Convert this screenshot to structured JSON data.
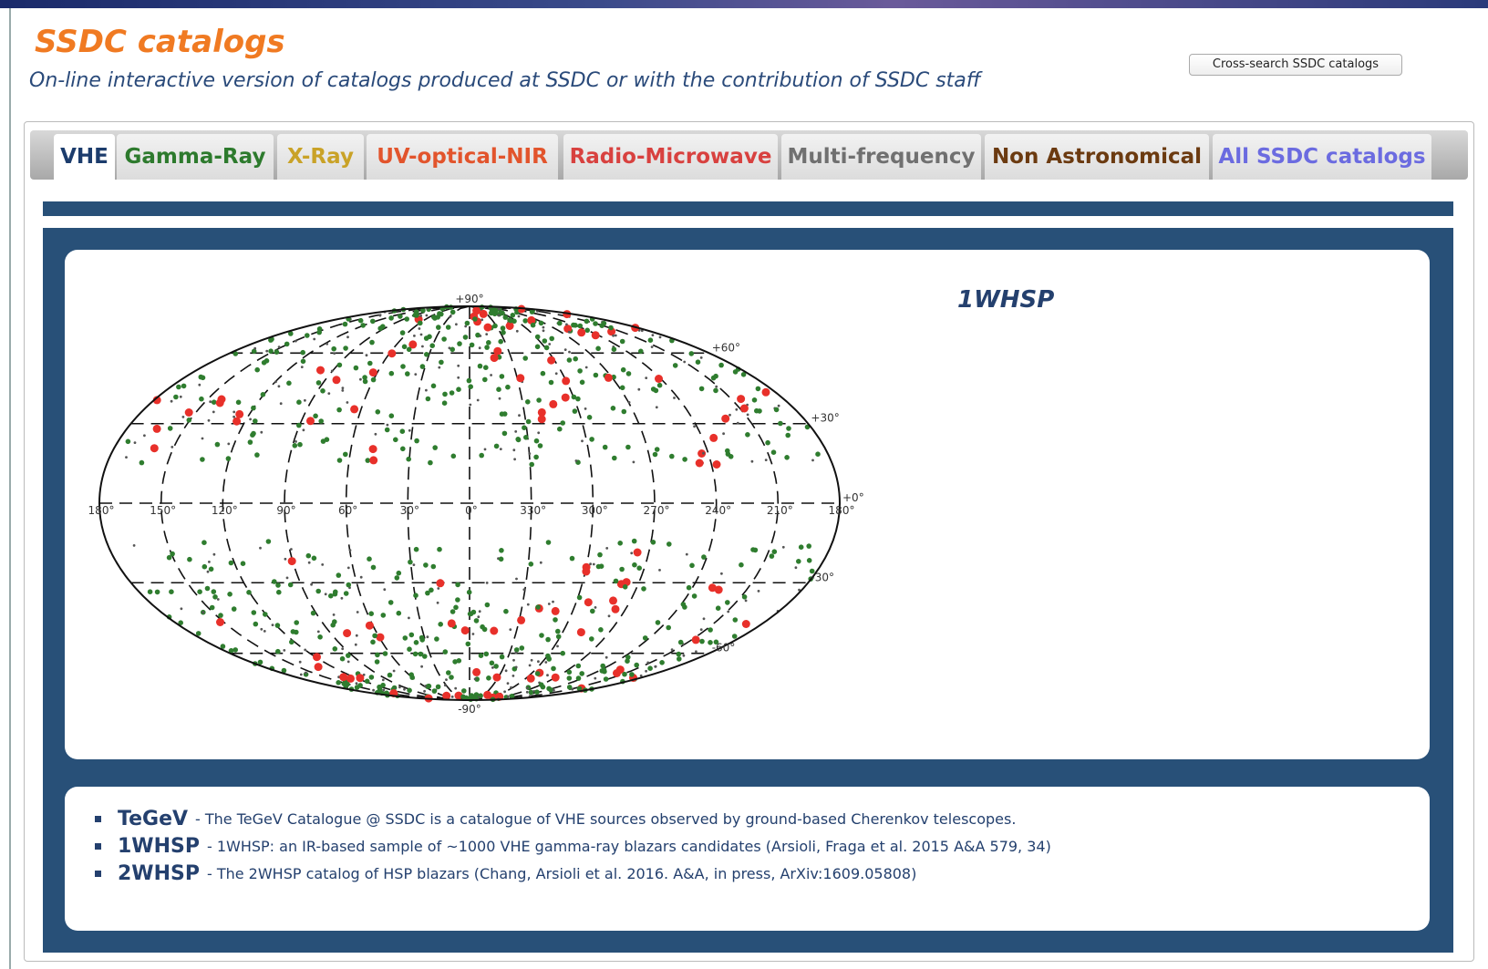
{
  "header": {
    "title": "SSDC catalogs",
    "subtitle": "On-line interactive version of catalogs produced at SSDC or with the contribution of SSDC staff"
  },
  "button": {
    "label": "Cross-search SSDC catalogs"
  },
  "tabs": [
    "VHE",
    "Gamma-Ray",
    "X-Ray",
    "UV-optical-NIR",
    "Radio-Microwave",
    "Multi-frequency",
    "Non Astronomical",
    "All SSDC catalogs"
  ],
  "map": {
    "title": "1WHSP",
    "top_label": "+90°",
    "bottom_label": "-90°",
    "lat_labels": [
      "+60°",
      "+30°",
      "+0°",
      "-30°",
      "-60°"
    ],
    "lon_labels": [
      "180°",
      "150°",
      "120°",
      "90°",
      "60°",
      "30°",
      "0°",
      "330°",
      "300°",
      "270°",
      "240°",
      "210°",
      "180°"
    ]
  },
  "catalogs": [
    {
      "name": "TeGeV",
      "description": "- The TeGeV Catalogue @ SSDC is a catalogue of VHE sources observed by ground-based Cherenkov telescopes."
    },
    {
      "name": "1WHSP",
      "description": "- 1WHSP: an IR-based sample of ~1000 VHE gamma-ray blazars candidates (Arsioli, Fraga et al. 2015 A&A 579, 34)"
    },
    {
      "name": "2WHSP",
      "description": "- The 2WHSP catalog of HSP blazars (Chang, Arsioli et al. 2016. A&A, in press, ArXiv:1609.05808)"
    }
  ]
}
